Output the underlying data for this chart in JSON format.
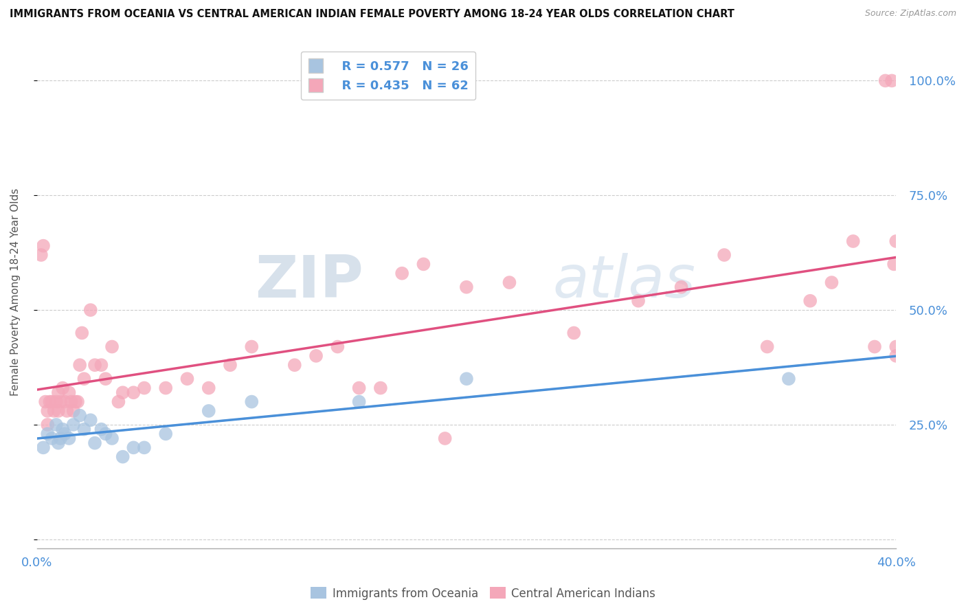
{
  "title": "IMMIGRANTS FROM OCEANIA VS CENTRAL AMERICAN INDIAN FEMALE POVERTY AMONG 18-24 YEAR OLDS CORRELATION CHART",
  "source": "Source: ZipAtlas.com",
  "ylabel": "Female Poverty Among 18-24 Year Olds",
  "xlim": [
    0.0,
    0.4
  ],
  "ylim": [
    -0.02,
    1.1
  ],
  "ytick_vals": [
    0.0,
    0.25,
    0.5,
    0.75,
    1.0
  ],
  "ytick_labels_right": [
    "",
    "25.0%",
    "50.0%",
    "75.0%",
    "100.0%"
  ],
  "xtick_vals": [
    0.0,
    0.04,
    0.08,
    0.12,
    0.16,
    0.2,
    0.24,
    0.28,
    0.32,
    0.36,
    0.4
  ],
  "legend_r1": "R = 0.577",
  "legend_n1": "N = 26",
  "legend_r2": "R = 0.435",
  "legend_n2": "N = 62",
  "color_oceania": "#a8c4e0",
  "color_central": "#f4a7b9",
  "color_line_oceania": "#4a90d9",
  "color_line_central": "#e05080",
  "color_line_dashed": "#a8c4e0",
  "oceania_x": [
    0.003,
    0.005,
    0.007,
    0.009,
    0.01,
    0.011,
    0.012,
    0.013,
    0.015,
    0.017,
    0.02,
    0.022,
    0.025,
    0.027,
    0.03,
    0.032,
    0.035,
    0.04,
    0.045,
    0.05,
    0.06,
    0.08,
    0.1,
    0.15,
    0.2,
    0.35
  ],
  "oceania_y": [
    0.2,
    0.23,
    0.22,
    0.25,
    0.21,
    0.22,
    0.24,
    0.23,
    0.22,
    0.25,
    0.27,
    0.24,
    0.26,
    0.21,
    0.24,
    0.23,
    0.22,
    0.18,
    0.2,
    0.2,
    0.23,
    0.28,
    0.3,
    0.3,
    0.35,
    0.35
  ],
  "central_x": [
    0.002,
    0.003,
    0.004,
    0.005,
    0.005,
    0.006,
    0.007,
    0.008,
    0.009,
    0.01,
    0.01,
    0.011,
    0.012,
    0.013,
    0.014,
    0.015,
    0.016,
    0.017,
    0.018,
    0.019,
    0.02,
    0.021,
    0.022,
    0.025,
    0.027,
    0.03,
    0.032,
    0.035,
    0.038,
    0.04,
    0.045,
    0.05,
    0.06,
    0.07,
    0.08,
    0.09,
    0.1,
    0.12,
    0.13,
    0.14,
    0.15,
    0.16,
    0.17,
    0.18,
    0.19,
    0.2,
    0.22,
    0.25,
    0.28,
    0.3,
    0.32,
    0.34,
    0.36,
    0.37,
    0.38,
    0.39,
    0.395,
    0.398,
    0.399,
    0.4,
    0.4,
    0.4
  ],
  "central_y": [
    0.62,
    0.64,
    0.3,
    0.28,
    0.25,
    0.3,
    0.3,
    0.28,
    0.3,
    0.32,
    0.28,
    0.3,
    0.33,
    0.3,
    0.28,
    0.32,
    0.3,
    0.28,
    0.3,
    0.3,
    0.38,
    0.45,
    0.35,
    0.5,
    0.38,
    0.38,
    0.35,
    0.42,
    0.3,
    0.32,
    0.32,
    0.33,
    0.33,
    0.35,
    0.33,
    0.38,
    0.42,
    0.38,
    0.4,
    0.42,
    0.33,
    0.33,
    0.58,
    0.6,
    0.22,
    0.55,
    0.56,
    0.45,
    0.52,
    0.55,
    0.62,
    0.42,
    0.52,
    0.56,
    0.65,
    0.42,
    1.0,
    1.0,
    0.6,
    0.65,
    0.4,
    0.42
  ]
}
